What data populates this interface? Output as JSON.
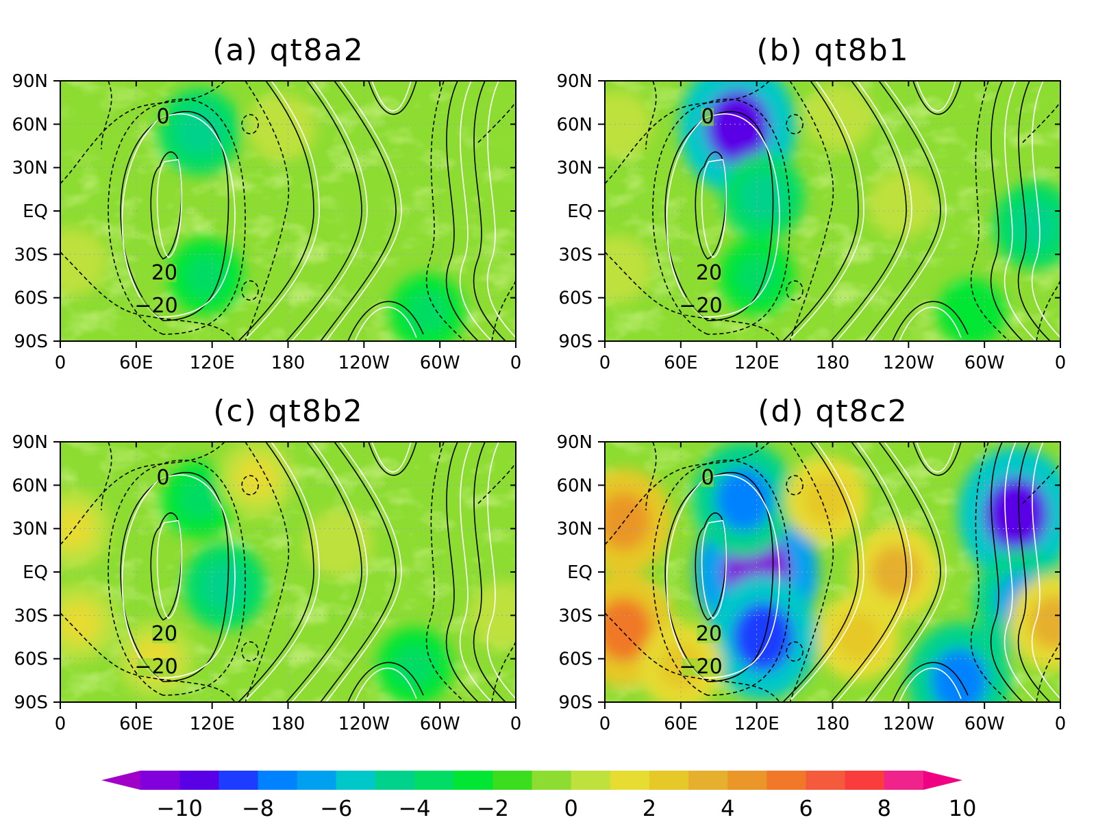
{
  "chart_data": [
    {
      "type": "heatmap",
      "title": "(a) qt8a2",
      "x_ticks": [
        "0",
        "60E",
        "120E",
        "180",
        "120W",
        "60W",
        "0"
      ],
      "y_ticks": [
        "90N",
        "60N",
        "30N",
        "EQ",
        "30S",
        "60S",
        "90S"
      ],
      "xlim": [
        0,
        360
      ],
      "ylim": [
        -90,
        90
      ],
      "contour_labels": [
        "0",
        "20",
        "-20"
      ],
      "blobs": [
        {
          "lon": 110,
          "lat": 55,
          "value": -4
        },
        {
          "lon": 115,
          "lat": -45,
          "value": -3
        },
        {
          "lon": 290,
          "lat": -70,
          "value": -3
        },
        {
          "lon": 20,
          "lat": 55,
          "value": 1
        },
        {
          "lon": 10,
          "lat": -35,
          "value": 2
        },
        {
          "lon": 175,
          "lat": 58,
          "value": 2
        },
        {
          "lon": 240,
          "lat": 0,
          "value": 1
        },
        {
          "lon": 345,
          "lat": 60,
          "value": 1
        }
      ]
    },
    {
      "type": "heatmap",
      "title": "(b) qt8b1",
      "x_ticks": [
        "0",
        "60E",
        "120E",
        "180",
        "120W",
        "60W",
        "0"
      ],
      "y_ticks": [
        "90N",
        "60N",
        "30N",
        "EQ",
        "30S",
        "60S",
        "90S"
      ],
      "xlim": [
        0,
        360
      ],
      "ylim": [
        -90,
        90
      ],
      "contour_labels": [
        "0",
        "20",
        "-20"
      ],
      "blobs": [
        {
          "lon": 105,
          "lat": 58,
          "value": -9
        },
        {
          "lon": 125,
          "lat": 10,
          "value": -4
        },
        {
          "lon": 120,
          "lat": -45,
          "value": -3
        },
        {
          "lon": 340,
          "lat": -10,
          "value": -4
        },
        {
          "lon": 290,
          "lat": -70,
          "value": -2
        },
        {
          "lon": 10,
          "lat": 60,
          "value": 2
        },
        {
          "lon": 10,
          "lat": -40,
          "value": 2
        },
        {
          "lon": 235,
          "lat": 5,
          "value": 2
        },
        {
          "lon": 185,
          "lat": 65,
          "value": 2
        }
      ]
    },
    {
      "type": "heatmap",
      "title": "(c) qt8b2",
      "x_ticks": [
        "0",
        "60E",
        "120E",
        "180",
        "120W",
        "60W",
        "0"
      ],
      "y_ticks": [
        "90N",
        "60N",
        "30N",
        "EQ",
        "30S",
        "60S",
        "90S"
      ],
      "xlim": [
        0,
        360
      ],
      "ylim": [
        -90,
        90
      ],
      "contour_labels": [
        "0",
        "20",
        "-20"
      ],
      "blobs": [
        {
          "lon": 130,
          "lat": -10,
          "value": -4
        },
        {
          "lon": 110,
          "lat": 50,
          "value": -3
        },
        {
          "lon": 280,
          "lat": -65,
          "value": -3
        },
        {
          "lon": 10,
          "lat": 30,
          "value": 3
        },
        {
          "lon": 15,
          "lat": -35,
          "value": 3
        },
        {
          "lon": 75,
          "lat": -60,
          "value": 3
        },
        {
          "lon": 155,
          "lat": 65,
          "value": 3
        },
        {
          "lon": 220,
          "lat": 20,
          "value": 2
        },
        {
          "lon": 350,
          "lat": -30,
          "value": 2
        }
      ]
    },
    {
      "type": "heatmap",
      "title": "(d) qt8c2",
      "x_ticks": [
        "0",
        "60E",
        "120E",
        "180",
        "120W",
        "60W",
        "0"
      ],
      "y_ticks": [
        "90N",
        "60N",
        "30N",
        "EQ",
        "30S",
        "60S",
        "90S"
      ],
      "xlim": [
        0,
        360
      ],
      "ylim": [
        -90,
        90
      ],
      "contour_labels": [
        "0",
        "20",
        "-20"
      ],
      "blobs": [
        {
          "lon": 120,
          "lat": 0,
          "value": -10
        },
        {
          "lon": 110,
          "lat": 50,
          "value": -7
        },
        {
          "lon": 125,
          "lat": -45,
          "value": -8
        },
        {
          "lon": 325,
          "lat": 40,
          "value": -9
        },
        {
          "lon": 330,
          "lat": -20,
          "value": -6
        },
        {
          "lon": 280,
          "lat": -75,
          "value": -7
        },
        {
          "lon": 15,
          "lat": 35,
          "value": 6
        },
        {
          "lon": 15,
          "lat": -40,
          "value": 7
        },
        {
          "lon": 230,
          "lat": 0,
          "value": 5
        },
        {
          "lon": 175,
          "lat": 50,
          "value": 4
        },
        {
          "lon": 200,
          "lat": -45,
          "value": 4
        },
        {
          "lon": 60,
          "lat": -65,
          "value": 4
        },
        {
          "lon": 355,
          "lat": -35,
          "value": 5
        }
      ]
    }
  ],
  "colorbar": {
    "ticks": [
      "-10",
      "-8",
      "-6",
      "-4",
      "-2",
      "0",
      "2",
      "4",
      "6",
      "8",
      "10"
    ],
    "range": [
      -10,
      10
    ],
    "colors": [
      "#a000c8",
      "#8200dc",
      "#5a00e6",
      "#1e3cff",
      "#0082ff",
      "#00a0f0",
      "#00c8c8",
      "#00d28c",
      "#00dc64",
      "#00e632",
      "#3cdc1e",
      "#8cdc32",
      "#bee13c",
      "#e6dc32",
      "#e6c828",
      "#e6af2d",
      "#ea9628",
      "#f07828",
      "#f55a3c",
      "#fa3c3c",
      "#f0238c",
      "#f00082"
    ]
  }
}
